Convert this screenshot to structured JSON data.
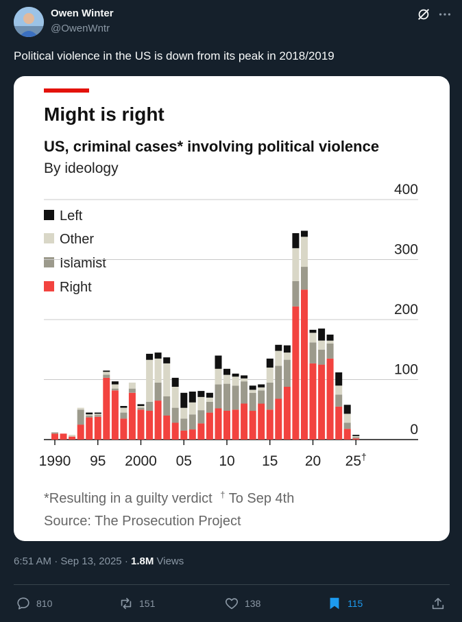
{
  "author": {
    "name": "Owen Winter",
    "handle": "@OwenWntr"
  },
  "tweet": {
    "text": "Political violence in the US is down from its peak in 2018/2019",
    "time": "6:51 AM",
    "date": "Sep 13, 2025",
    "views_count": "1.8M",
    "views_label": "Views"
  },
  "actions": {
    "replies": "810",
    "reposts": "151",
    "likes": "138",
    "bookmarks": "115"
  },
  "colors": {
    "background": "#15202b",
    "card": "#ffffff",
    "accent": "#1d9bf0",
    "muted": "#8b98a5",
    "left": "#111111",
    "other": "#d9d7c7",
    "islamist": "#9c9a8c",
    "right": "#f2433f",
    "title_bar": "#e3120b"
  },
  "icons": [
    "reply-icon",
    "repost-icon",
    "like-icon",
    "bookmark-icon",
    "share-icon",
    "grok-icon",
    "more-icon"
  ],
  "chart_data": {
    "type": "bar",
    "stacked": true,
    "title": "Might is right",
    "subtitle": "US, criminal cases* involving political violence",
    "subtitle2": "By ideology",
    "y_ticks": [
      "400",
      "300",
      "200",
      "100",
      "0"
    ],
    "ylim": [
      0,
      400
    ],
    "x_tick_labels": [
      "1990",
      "95",
      "2000",
      "05",
      "10",
      "15",
      "20",
      "25†"
    ],
    "x_tick_years": [
      1990,
      1995,
      2000,
      2005,
      2010,
      2015,
      2020,
      2025
    ],
    "legend": [
      "Left",
      "Other",
      "Islamist",
      "Right"
    ],
    "footnote": "*Resulting in a guilty verdict",
    "footnote2": "To Sep 4th",
    "footnote2_mark": "†",
    "source": "Source: The Prosecution Project",
    "categories": [
      1990,
      1991,
      1992,
      1993,
      1994,
      1995,
      1996,
      1997,
      1998,
      1999,
      2000,
      2001,
      2002,
      2003,
      2004,
      2005,
      2006,
      2007,
      2008,
      2009,
      2010,
      2011,
      2012,
      2013,
      2014,
      2015,
      2016,
      2017,
      2018,
      2019,
      2020,
      2021,
      2022,
      2023,
      2024,
      2025
    ],
    "series": [
      {
        "name": "Right",
        "values": [
          10,
          10,
          5,
          25,
          37,
          38,
          103,
          82,
          35,
          78,
          50,
          48,
          65,
          40,
          28,
          15,
          17,
          27,
          45,
          52,
          48,
          50,
          60,
          48,
          60,
          50,
          68,
          88,
          222,
          250,
          127,
          125,
          135,
          55,
          18,
          2
        ]
      },
      {
        "name": "Islamist",
        "values": [
          2,
          0,
          0,
          25,
          3,
          3,
          5,
          3,
          10,
          7,
          3,
          15,
          30,
          32,
          25,
          20,
          25,
          22,
          18,
          40,
          45,
          40,
          37,
          30,
          22,
          45,
          55,
          45,
          42,
          38,
          35,
          25,
          25,
          20,
          10,
          2
        ]
      },
      {
        "name": "Other",
        "values": [
          0,
          0,
          3,
          3,
          2,
          2,
          5,
          7,
          8,
          10,
          3,
          70,
          40,
          55,
          35,
          18,
          20,
          22,
          7,
          26,
          15,
          15,
          5,
          5,
          5,
          25,
          25,
          12,
          55,
          50,
          16,
          15,
          5,
          15,
          15,
          2
        ]
      },
      {
        "name": "Left",
        "values": [
          0,
          0,
          0,
          0,
          3,
          2,
          2,
          5,
          3,
          0,
          3,
          10,
          10,
          10,
          15,
          25,
          18,
          10,
          8,
          22,
          10,
          5,
          5,
          7,
          5,
          15,
          10,
          12,
          25,
          10,
          5,
          20,
          10,
          22,
          15,
          2
        ]
      }
    ]
  }
}
